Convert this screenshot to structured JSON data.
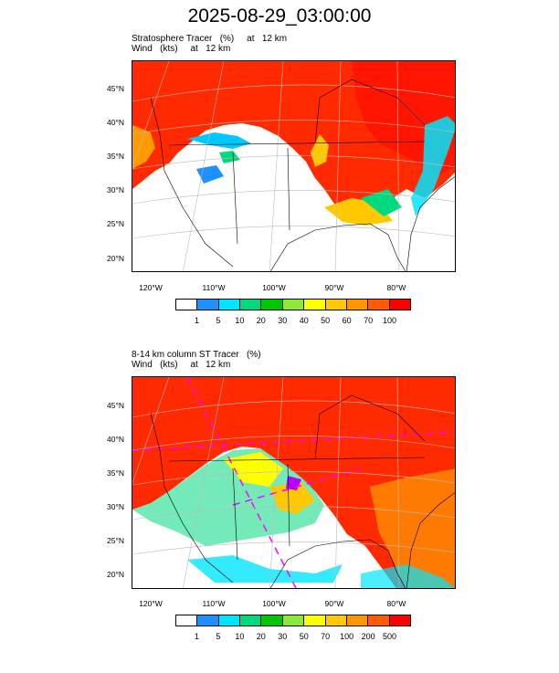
{
  "title": "2025-08-29_03:00:00",
  "panels": [
    {
      "subtitle_line1": "Stratosphere Tracer   (%)     at   12 km",
      "subtitle_line2": "Wind   (kts)     at   12 km",
      "lat_labels": [
        "45°N",
        "40°N",
        "35°N",
        "30°N",
        "25°N",
        "20°N"
      ],
      "lon_labels": [
        "120°W",
        "110°W",
        "100°W",
        "90°W",
        "80°W"
      ],
      "colorbar_labels": [
        "1",
        "5",
        "10",
        "20",
        "30",
        "40",
        "50",
        "60",
        "70",
        "100"
      ],
      "colorbar_colors": [
        "#ffffff",
        "#1e90ff",
        "#00e5ff",
        "#00d97e",
        "#00c800",
        "#8ee83a",
        "#ffff00",
        "#ffc800",
        "#ff9600",
        "#ff5a00",
        "#ff0000"
      ]
    },
    {
      "subtitle_line1": "8-14 km column ST Tracer   (%)",
      "subtitle_line2": "Wind   (kts)     at   12 km",
      "lat_labels": [
        "45°N",
        "40°N",
        "35°N",
        "30°N",
        "25°N",
        "20°N"
      ],
      "lon_labels": [
        "120°W",
        "110°W",
        "100°W",
        "90°W",
        "80°W"
      ],
      "colorbar_labels": [
        "1",
        "5",
        "10",
        "20",
        "30",
        "50",
        "70",
        "100",
        "200",
        "500"
      ],
      "colorbar_colors": [
        "#ffffff",
        "#1e90ff",
        "#00e5ff",
        "#00d97e",
        "#00c800",
        "#8ee83a",
        "#ffff00",
        "#ffc800",
        "#ff9600",
        "#ff5a00",
        "#ff0000"
      ]
    }
  ]
}
